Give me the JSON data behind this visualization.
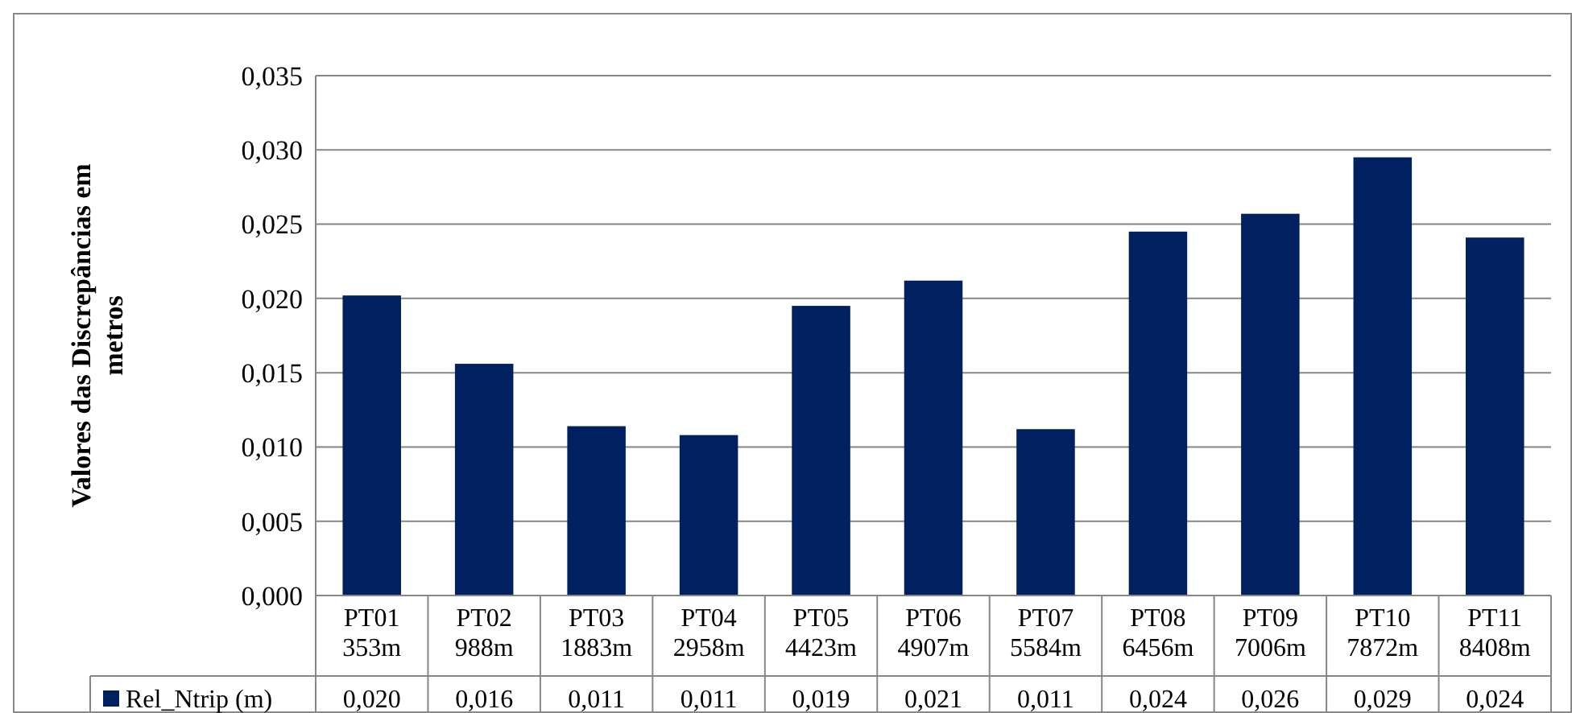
{
  "chart_data": {
    "type": "bar",
    "ylabel": "Valores das Discrepâncias em metros",
    "categories": [
      "PT01\n353m",
      "PT02\n988m",
      "PT03\n1883m",
      "PT04\n2958m",
      "PT05\n4423m",
      "PT06\n4907m",
      "PT07\n5584m",
      "PT08\n6456m",
      "PT09\n7006m",
      "PT10\n7872m",
      "PT11\n8408m"
    ],
    "series": [
      {
        "name": "Rel_Ntrip (m)",
        "color": "#002060",
        "values": [
          0.0202,
          0.0156,
          0.0114,
          0.0108,
          0.0195,
          0.0212,
          0.0112,
          0.0245,
          0.0257,
          0.0295,
          0.0241
        ],
        "value_labels": [
          "0,020",
          "0,016",
          "0,011",
          "0,011",
          "0,019",
          "0,021",
          "0,011",
          "0,024",
          "0,026",
          "0,029",
          "0,024"
        ]
      }
    ],
    "ylim": [
      0,
      0.035
    ],
    "yticks": [
      {
        "value": 0,
        "label": "0,000"
      },
      {
        "value": 0.005,
        "label": "0,005"
      },
      {
        "value": 0.01,
        "label": "0,010"
      },
      {
        "value": 0.015,
        "label": "0,015"
      },
      {
        "value": 0.02,
        "label": "0,020"
      },
      {
        "value": 0.025,
        "label": "0,025"
      },
      {
        "value": 0.03,
        "label": "0,030"
      },
      {
        "value": 0.035,
        "label": "0,035"
      }
    ],
    "grid": true,
    "legend": "bottom"
  }
}
